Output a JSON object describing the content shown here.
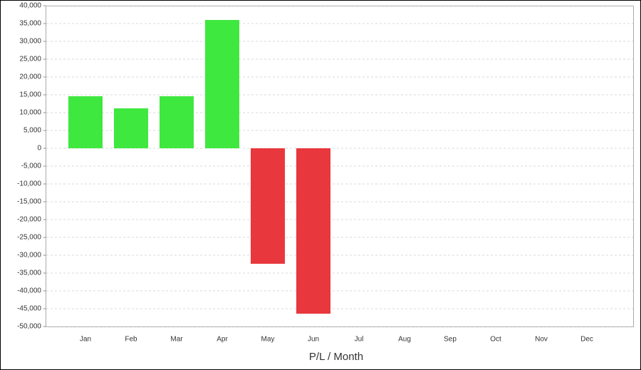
{
  "chart_data": {
    "type": "bar",
    "x_label": "P/L / Month",
    "categories": [
      "Jan",
      "Feb",
      "Mar",
      "Apr",
      "May",
      "Jun",
      "Jul",
      "Aug",
      "Sep",
      "Oct",
      "Nov",
      "Dec"
    ],
    "values": [
      14600,
      11200,
      14600,
      36000,
      -32400,
      -46400,
      null,
      null,
      null,
      null,
      null,
      null
    ],
    "positive_color": "#3fe83f",
    "negative_color": "#e8383d",
    "ylim": [
      -50000,
      40000
    ],
    "yticks": [
      {
        "value": 40000,
        "label": "40,000"
      },
      {
        "value": 35000,
        "label": "35,000"
      },
      {
        "value": 30000,
        "label": "30,000"
      },
      {
        "value": 25000,
        "label": "25,000"
      },
      {
        "value": 20000,
        "label": "20,000"
      },
      {
        "value": 15000,
        "label": "15,000"
      },
      {
        "value": 10000,
        "label": "10,000"
      },
      {
        "value": 5000,
        "label": "5,000"
      },
      0,
      {
        "value": -5000,
        "label": "-5,000"
      },
      {
        "value": -10000,
        "label": "-10,000"
      },
      {
        "value": -15000,
        "label": "-15,000"
      },
      {
        "value": -20000,
        "label": "-20,000"
      },
      {
        "value": -25000,
        "label": "-25,000"
      },
      {
        "value": -30000,
        "label": "-30,000"
      },
      {
        "value": -35000,
        "label": "-35,000"
      },
      {
        "value": -40000,
        "label": "-40,000"
      },
      {
        "value": -45000,
        "label": "-45,000"
      },
      {
        "value": -50000,
        "label": "-50,000"
      }
    ],
    "grid": true
  }
}
